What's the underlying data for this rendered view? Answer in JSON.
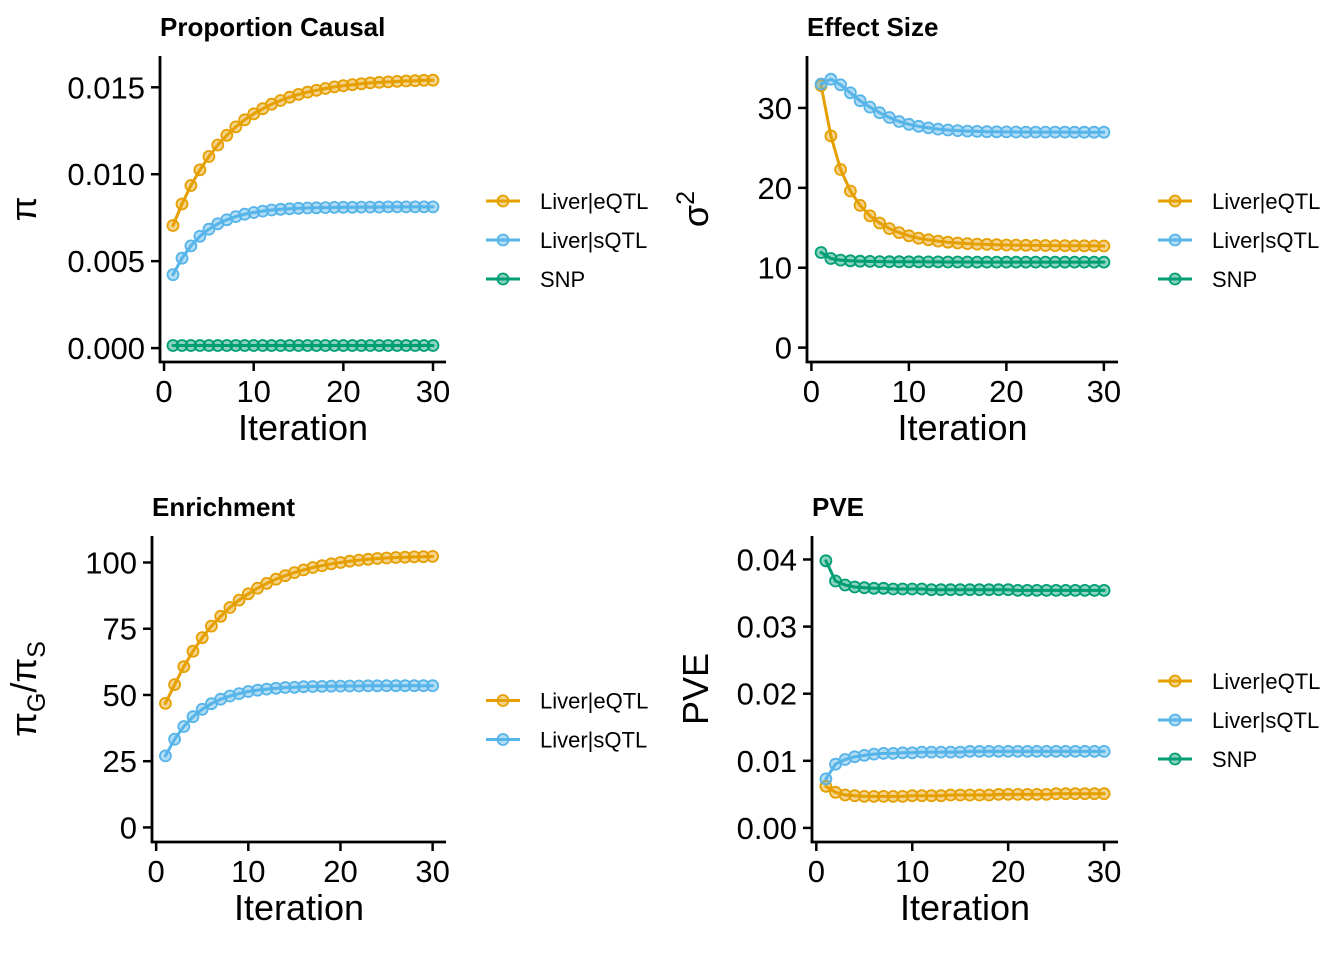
{
  "figure": {
    "background": "#FFFFFF",
    "axis_color": "#000000",
    "text_color": "#000000"
  },
  "palette": {
    "liver_eqtl": "#E69F00",
    "liver_sqtl": "#56B4E9",
    "snp": "#009E73"
  },
  "chart_data": [
    {
      "type": "line",
      "title": "Proportion Causal",
      "xlabel": "Iteration",
      "ylabel": "π",
      "ylabel_parts": [
        {
          "text": "π",
          "script": "normal"
        }
      ],
      "grid": false,
      "legend_position": "right",
      "xlim": [
        -0.45,
        31.45
      ],
      "ylim": [
        -0.0008,
        0.0168
      ],
      "x_ticks": [
        0,
        10,
        20,
        30
      ],
      "x_tick_labels": [
        "0",
        "10",
        "20",
        "30"
      ],
      "y_ticks": [
        0,
        0.005,
        0.01,
        0.015
      ],
      "y_tick_labels": [
        "0.000",
        "0.005",
        "0.010",
        "0.015"
      ],
      "x": [
        1,
        2,
        3,
        4,
        5,
        6,
        7,
        8,
        9,
        10,
        11,
        12,
        13,
        14,
        15,
        16,
        17,
        18,
        19,
        20,
        21,
        22,
        23,
        24,
        25,
        26,
        27,
        28,
        29,
        30
      ],
      "series": [
        {
          "name": "Liver|eQTL",
          "color": "#E69F00",
          "values": [
            0.00705,
            0.00829,
            0.00935,
            0.01025,
            0.01102,
            0.01168,
            0.01224,
            0.01272,
            0.01313,
            0.01347,
            0.01377,
            0.01403,
            0.01424,
            0.01443,
            0.01459,
            0.01472,
            0.01483,
            0.01493,
            0.01502,
            0.01509,
            0.01515,
            0.0152,
            0.01525,
            0.01528,
            0.01531,
            0.01534,
            0.01536,
            0.01538,
            0.0154,
            0.01541
          ]
        },
        {
          "name": "Liver|sQTL",
          "color": "#56B4E9",
          "values": [
            0.00422,
            0.00517,
            0.00588,
            0.00643,
            0.00684,
            0.00715,
            0.00738,
            0.00756,
            0.0077,
            0.0078,
            0.00788,
            0.00794,
            0.00798,
            0.00801,
            0.00804,
            0.00806,
            0.00807,
            0.00808,
            0.00809,
            0.0081,
            0.0081,
            0.00811,
            0.00811,
            0.00811,
            0.00812,
            0.00812,
            0.00812,
            0.00812,
            0.00812,
            0.00812
          ]
        },
        {
          "name": "SNP",
          "color": "#009E73",
          "values": [
            0.00015,
            0.00015,
            0.00015,
            0.00015,
            0.00015,
            0.00015,
            0.00015,
            0.00015,
            0.00015,
            0.00015,
            0.00015,
            0.00015,
            0.00015,
            0.00015,
            0.00015,
            0.00015,
            0.00015,
            0.00015,
            0.00015,
            0.00015,
            0.00015,
            0.00015,
            0.00015,
            0.00015,
            0.00015,
            0.00015,
            0.00015,
            0.00015,
            0.00015,
            0.00015
          ]
        }
      ]
    },
    {
      "type": "line",
      "title": "Effect Size",
      "xlabel": "Iteration",
      "ylabel": "σ2",
      "ylabel_parts": [
        {
          "text": "σ",
          "script": "normal"
        },
        {
          "text": "2",
          "script": "super"
        }
      ],
      "grid": false,
      "legend_position": "right",
      "xlim": [
        -0.45,
        31.45
      ],
      "ylim": [
        -1.8,
        36.5
      ],
      "x_ticks": [
        0,
        10,
        20,
        30
      ],
      "x_tick_labels": [
        "0",
        "10",
        "20",
        "30"
      ],
      "y_ticks": [
        0,
        10,
        20,
        30
      ],
      "y_tick_labels": [
        "0",
        "10",
        "20",
        "30"
      ],
      "x": [
        1,
        2,
        3,
        4,
        5,
        6,
        7,
        8,
        9,
        10,
        11,
        12,
        13,
        14,
        15,
        16,
        17,
        18,
        19,
        20,
        21,
        22,
        23,
        24,
        25,
        26,
        27,
        28,
        29,
        30
      ],
      "series": [
        {
          "name": "Liver|eQTL",
          "color": "#E69F00",
          "values": [
            32.8,
            26.5,
            22.3,
            19.6,
            17.8,
            16.5,
            15.6,
            14.9,
            14.4,
            14.0,
            13.7,
            13.5,
            13.33,
            13.2,
            13.1,
            13.02,
            12.96,
            12.92,
            12.88,
            12.85,
            12.83,
            12.81,
            12.79,
            12.78,
            12.77,
            12.76,
            12.75,
            12.74,
            12.73,
            12.72
          ]
        },
        {
          "name": "Liver|sQTL",
          "color": "#56B4E9",
          "values": [
            33.0,
            33.6,
            32.9,
            31.9,
            30.9,
            30.1,
            29.4,
            28.8,
            28.3,
            27.95,
            27.7,
            27.5,
            27.35,
            27.24,
            27.16,
            27.1,
            27.06,
            27.03,
            27.01,
            27.0,
            26.99,
            26.98,
            26.98,
            26.97,
            26.97,
            26.97,
            26.96,
            26.96,
            26.96,
            26.96
          ]
        },
        {
          "name": "SNP",
          "color": "#009E73",
          "values": [
            11.9,
            11.15,
            10.95,
            10.87,
            10.82,
            10.79,
            10.77,
            10.76,
            10.75,
            10.74,
            10.74,
            10.73,
            10.73,
            10.72,
            10.72,
            10.72,
            10.71,
            10.71,
            10.71,
            10.71,
            10.7,
            10.7,
            10.7,
            10.7,
            10.7,
            10.7,
            10.7,
            10.7,
            10.7,
            10.7
          ]
        }
      ]
    },
    {
      "type": "line",
      "title": "Enrichment",
      "xlabel": "Iteration",
      "ylabel": "πG/πS",
      "ylabel_parts": [
        {
          "text": "π",
          "script": "normal"
        },
        {
          "text": "G",
          "script": "sub"
        },
        {
          "text": "/",
          "script": "normal"
        },
        {
          "text": "π",
          "script": "normal"
        },
        {
          "text": "S",
          "script": "sub"
        }
      ],
      "grid": false,
      "legend_position": "right",
      "xlim": [
        -0.45,
        31.45
      ],
      "ylim": [
        -5.5,
        110
      ],
      "x_ticks": [
        0,
        10,
        20,
        30
      ],
      "x_tick_labels": [
        "0",
        "10",
        "20",
        "30"
      ],
      "y_ticks": [
        0,
        25,
        50,
        75,
        100
      ],
      "y_tick_labels": [
        "0",
        "25",
        "50",
        "75",
        "100"
      ],
      "x": [
        1,
        2,
        3,
        4,
        5,
        6,
        7,
        8,
        9,
        10,
        11,
        12,
        13,
        14,
        15,
        16,
        17,
        18,
        19,
        20,
        21,
        22,
        23,
        24,
        25,
        26,
        27,
        28,
        29,
        30
      ],
      "series": [
        {
          "name": "Liver|eQTL",
          "color": "#E69F00",
          "values": [
            46.8,
            53.9,
            60.7,
            66.5,
            71.6,
            76.0,
            79.7,
            83.0,
            85.8,
            88.2,
            90.3,
            92.1,
            93.7,
            95.0,
            96.2,
            97.2,
            98.1,
            98.8,
            99.5,
            100.0,
            100.5,
            100.9,
            101.2,
            101.5,
            101.7,
            101.9,
            102.0,
            102.1,
            102.2,
            102.3
          ]
        },
        {
          "name": "Liver|sQTL",
          "color": "#56B4E9",
          "values": [
            27.0,
            33.3,
            38.1,
            41.8,
            44.6,
            46.7,
            48.4,
            49.6,
            50.5,
            51.3,
            51.8,
            52.2,
            52.5,
            52.8,
            52.9,
            53.1,
            53.2,
            53.25,
            53.3,
            53.35,
            53.4,
            53.4,
            53.45,
            53.45,
            53.5,
            53.5,
            53.5,
            53.5,
            53.5,
            53.5
          ]
        }
      ]
    },
    {
      "type": "line",
      "title": "PVE",
      "xlabel": "Iteration",
      "ylabel": "PVE",
      "ylabel_parts": [
        {
          "text": "PVE",
          "script": "normal"
        }
      ],
      "grid": false,
      "legend_position": "right",
      "xlim": [
        -0.45,
        31.45
      ],
      "ylim": [
        -0.0021,
        0.0435
      ],
      "x_ticks": [
        0,
        10,
        20,
        30
      ],
      "x_tick_labels": [
        "0",
        "10",
        "20",
        "30"
      ],
      "y_ticks": [
        0,
        0.01,
        0.02,
        0.03,
        0.04
      ],
      "y_tick_labels": [
        "0.00",
        "0.01",
        "0.02",
        "0.03",
        "0.04"
      ],
      "x": [
        1,
        2,
        3,
        4,
        5,
        6,
        7,
        8,
        9,
        10,
        11,
        12,
        13,
        14,
        15,
        16,
        17,
        18,
        19,
        20,
        21,
        22,
        23,
        24,
        25,
        26,
        27,
        28,
        29,
        30
      ],
      "series": [
        {
          "name": "Liver|eQTL",
          "color": "#E69F00",
          "values": [
            0.0062,
            0.0053,
            0.0049,
            0.0048,
            0.0047,
            0.0047,
            0.0047,
            0.0047,
            0.0047,
            0.0048,
            0.0048,
            0.0048,
            0.0048,
            0.0049,
            0.0049,
            0.0049,
            0.0049,
            0.0049,
            0.005,
            0.005,
            0.005,
            0.005,
            0.005,
            0.005,
            0.0051,
            0.0051,
            0.0051,
            0.0051,
            0.0051,
            0.0051
          ]
        },
        {
          "name": "Liver|sQTL",
          "color": "#56B4E9",
          "values": [
            0.0073,
            0.0095,
            0.0102,
            0.0106,
            0.0108,
            0.011,
            0.0111,
            0.0111,
            0.0112,
            0.0112,
            0.0113,
            0.0113,
            0.0113,
            0.0113,
            0.0113,
            0.0114,
            0.0114,
            0.0114,
            0.0114,
            0.0114,
            0.0114,
            0.0114,
            0.0114,
            0.0114,
            0.0114,
            0.0114,
            0.0114,
            0.0114,
            0.0114,
            0.0114
          ]
        },
        {
          "name": "SNP",
          "color": "#009E73",
          "values": [
            0.0398,
            0.0368,
            0.0362,
            0.0359,
            0.0358,
            0.0357,
            0.0357,
            0.0356,
            0.0356,
            0.0356,
            0.0356,
            0.0355,
            0.0355,
            0.0355,
            0.0355,
            0.0355,
            0.0355,
            0.0355,
            0.0355,
            0.0355,
            0.0354,
            0.0354,
            0.0354,
            0.0354,
            0.0354,
            0.0354,
            0.0354,
            0.0354,
            0.0354,
            0.0354
          ]
        }
      ]
    }
  ]
}
